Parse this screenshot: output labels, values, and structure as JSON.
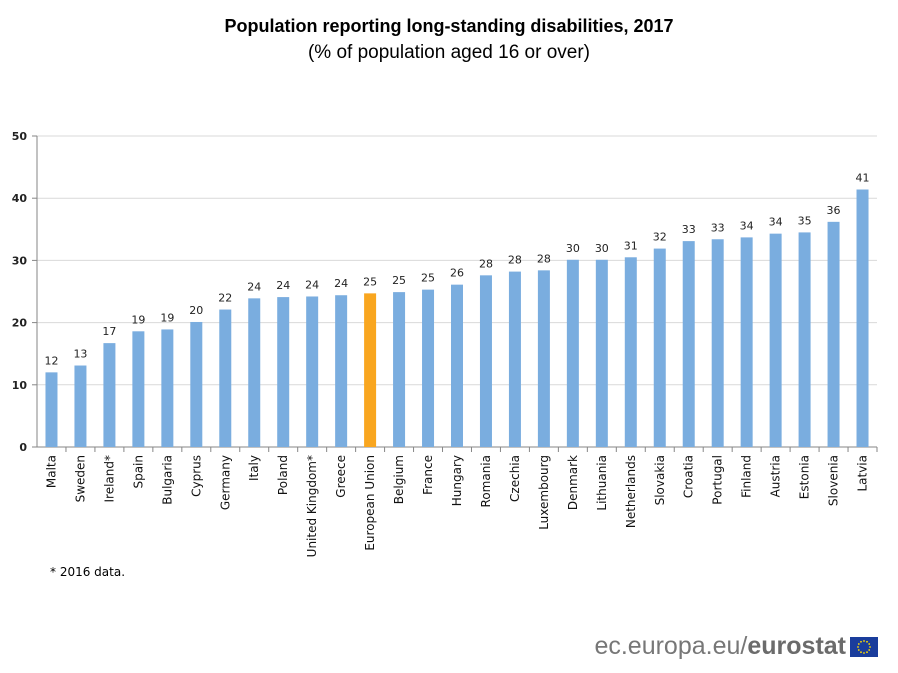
{
  "chart_data": {
    "type": "bar",
    "title": "Population reporting long-standing disabilities, 2017",
    "subtitle": "(% of population aged 16 or over)",
    "xlabel": "",
    "ylabel": "",
    "ylim": [
      0,
      50
    ],
    "yticks": [
      0,
      10,
      20,
      30,
      40,
      50
    ],
    "grid": true,
    "categories": [
      "Malta",
      "Sweden",
      "Ireland*",
      "Spain",
      "Bulgaria",
      "Cyprus",
      "Germany",
      "Italy",
      "Poland",
      "United Kingdom*",
      "Greece",
      "European Union",
      "Belgium",
      "France",
      "Hungary",
      "Romania",
      "Czechia",
      "Luxembourg",
      "Denmark",
      "Lithuania",
      "Netherlands",
      "Slovakia",
      "Croatia",
      "Portugal",
      "Finland",
      "Austria",
      "Estonia",
      "Slovenia",
      "Latvia"
    ],
    "values": [
      12.0,
      13.1,
      16.7,
      18.6,
      18.9,
      20.1,
      22.1,
      23.9,
      24.1,
      24.2,
      24.4,
      24.7,
      24.9,
      25.3,
      26.1,
      27.6,
      28.2,
      28.4,
      30.1,
      30.1,
      30.5,
      31.9,
      33.1,
      33.4,
      33.7,
      34.3,
      34.5,
      36.2,
      41.4
    ],
    "data_labels": [
      "12",
      "13",
      "17",
      "19",
      "19",
      "20",
      "22",
      "24",
      "24",
      "24",
      "24",
      "25",
      "25",
      "25",
      "26",
      "28",
      "28",
      "28",
      "30",
      "30",
      "31",
      "32",
      "33",
      "33",
      "34",
      "34",
      "35",
      "36",
      "41"
    ],
    "highlight_category": "European Union",
    "colors": {
      "bar": "#7aaddf",
      "highlight": "#f9a61f",
      "grid": "#d9d9d9",
      "axis": "#868686"
    }
  },
  "footnote": "* 2016 data.",
  "logo": {
    "prefix": "ec.europa.eu/",
    "brand": "eurostat"
  }
}
